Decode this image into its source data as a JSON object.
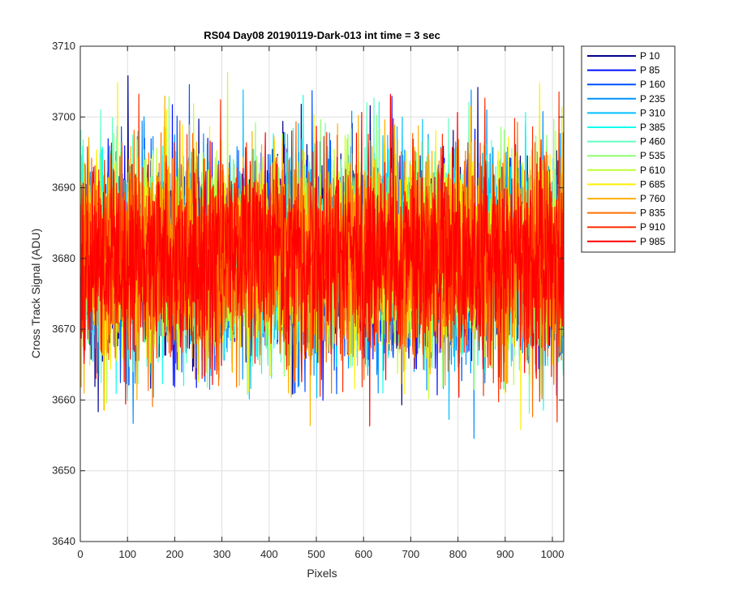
{
  "chart_data": {
    "type": "line",
    "title": "RS04 Day08 20190119-Dark-013 int time = 3 sec",
    "xlabel": "Pixels",
    "ylabel": "Cross Track Signal (ADU)",
    "xlim": [
      0,
      1024
    ],
    "ylim": [
      3640,
      3710
    ],
    "xticks": [
      0,
      100,
      200,
      300,
      400,
      500,
      600,
      700,
      800,
      900,
      1000
    ],
    "yticks": [
      3640,
      3650,
      3660,
      3670,
      3680,
      3690,
      3700,
      3710
    ],
    "grid": true,
    "legend_position": "outside-top-right",
    "noise": {
      "mean": 3680,
      "sd": 7,
      "min_observed": 3649,
      "max_observed": 3709,
      "n_pixels": 1024
    },
    "series": [
      {
        "name": "P 10",
        "color": "#00008F"
      },
      {
        "name": "P 85",
        "color": "#0010FF"
      },
      {
        "name": "P 160",
        "color": "#0050FF"
      },
      {
        "name": "P 235",
        "color": "#0090FF"
      },
      {
        "name": "P 310",
        "color": "#00C0FF"
      },
      {
        "name": "P 385",
        "color": "#10FFEF"
      },
      {
        "name": "P 460",
        "color": "#60FFC0"
      },
      {
        "name": "P 535",
        "color": "#90FF70"
      },
      {
        "name": "P 610",
        "color": "#C0FF30"
      },
      {
        "name": "P 685",
        "color": "#FFF000"
      },
      {
        "name": "P 760",
        "color": "#FFB000"
      },
      {
        "name": "P 835",
        "color": "#FF7000"
      },
      {
        "name": "P 910",
        "color": "#FF3000"
      },
      {
        "name": "P 985",
        "color": "#FF0000"
      }
    ]
  }
}
